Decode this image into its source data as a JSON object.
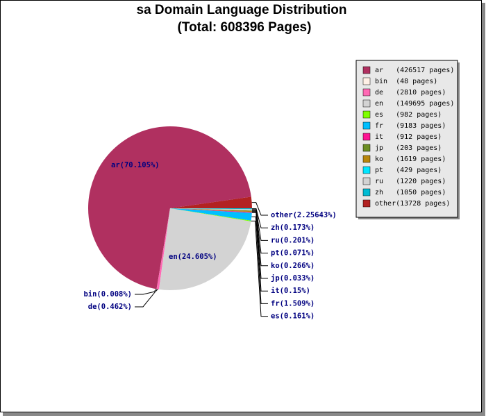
{
  "chart_data": {
    "type": "pie",
    "title": "sa Domain Language Distribution",
    "subtitle": "(Total: 608396 Pages)",
    "categories": [
      "ar",
      "bin",
      "de",
      "en",
      "es",
      "fr",
      "it",
      "jp",
      "ko",
      "pt",
      "ru",
      "zh",
      "other"
    ],
    "values": [
      70.105,
      0.008,
      0.462,
      24.605,
      0.161,
      1.509,
      0.15,
      0.033,
      0.266,
      0.071,
      0.201,
      0.173,
      2.25643
    ],
    "value_labels": [
      "ar(70.105%)",
      "bin(0.008%)",
      "de(0.462%)",
      "en(24.605%)",
      "es(0.161%)",
      "fr(1.509%)",
      "it(0.15%)",
      "jp(0.033%)",
      "ko(0.266%)",
      "pt(0.071%)",
      "ru(0.201%)",
      "zh(0.173%)",
      "other(2.25643%)"
    ],
    "legend_labels": [
      "ar   (426517 pages)",
      "bin  (48 pages)",
      "de   (2810 pages)",
      "en   (149695 pages)",
      "es   (982 pages)",
      "fr   (9183 pages)",
      "it   (912 pages)",
      "jp   (203 pages)",
      "ko   (1619 pages)",
      "pt   (429 pages)",
      "ru   (1220 pages)",
      "zh   (1050 pages)",
      "other(13728 pages)"
    ],
    "colors": [
      "#b03060",
      "#fff0e6",
      "#ff69b4",
      "#d3d3d3",
      "#7fff00",
      "#00bfff",
      "#ff1493",
      "#6b8e23",
      "#b8860b",
      "#00e5ff",
      "#d3d3d3",
      "#00bcd4",
      "#b22222"
    ],
    "legend_position": "upper right"
  }
}
